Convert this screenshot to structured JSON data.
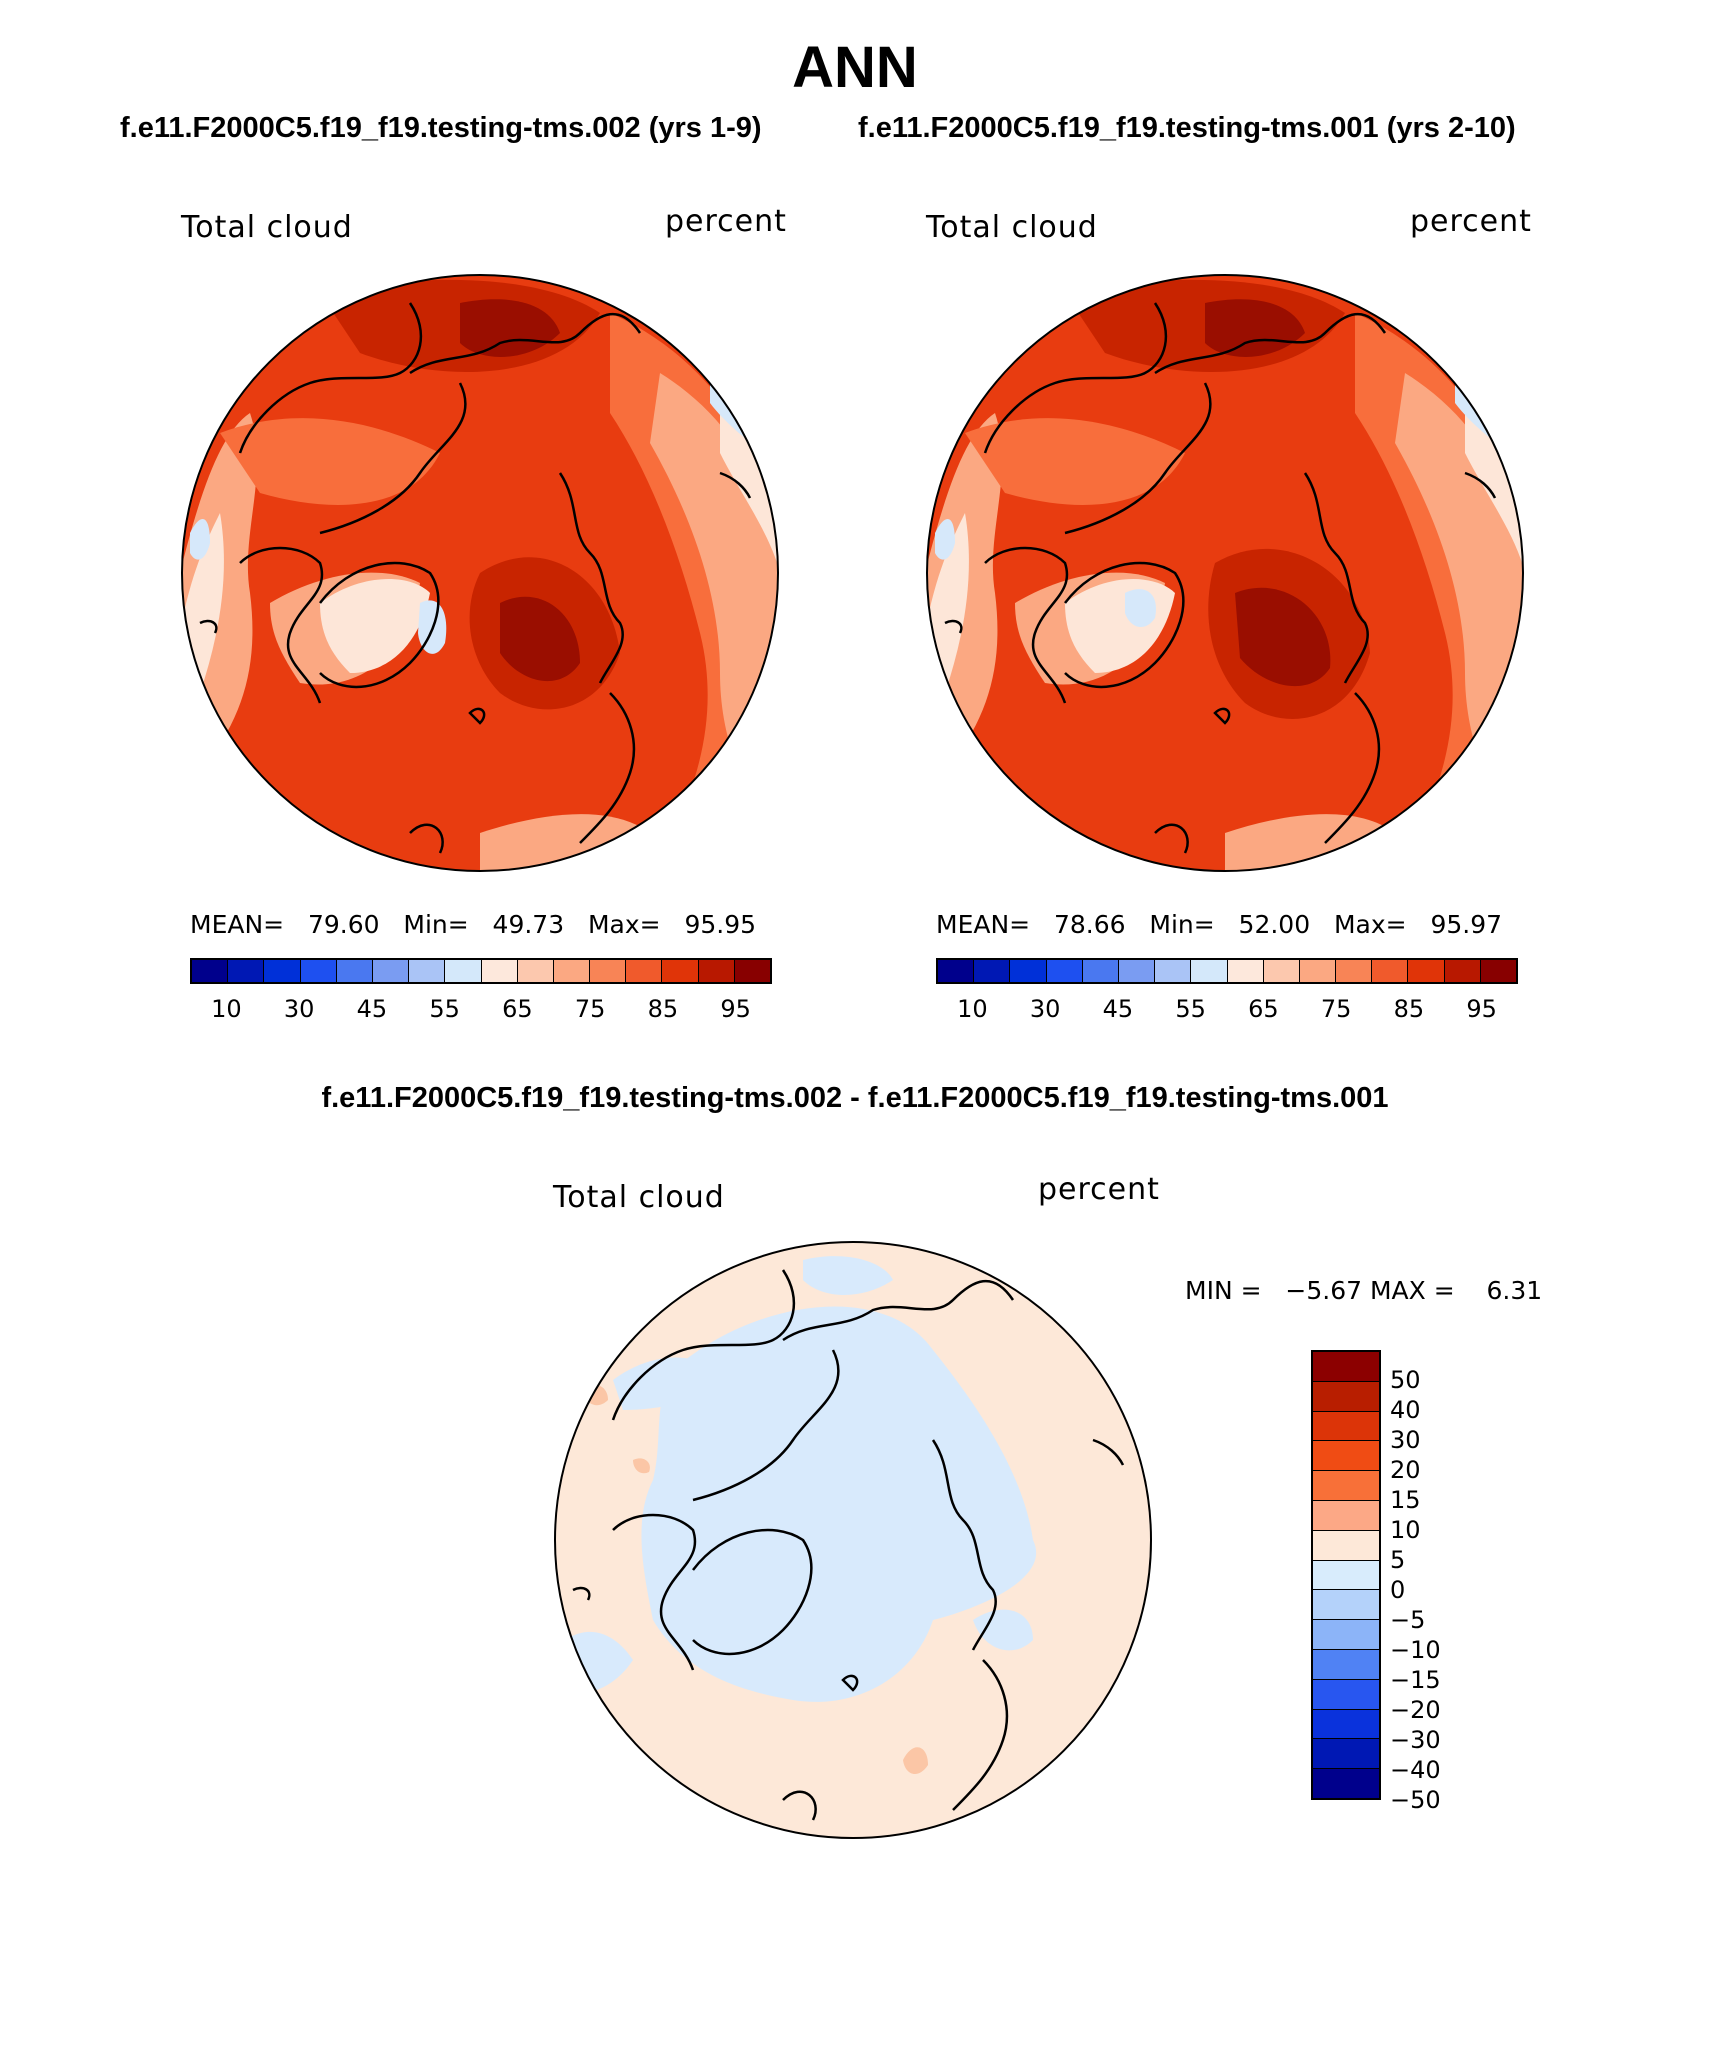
{
  "figure": {
    "title": "ANN",
    "subtitle_left": "f.e11.F2000C5.f19_f19.testing-tms.002 (yrs 1-9)",
    "subtitle_right": "f.e11.F2000C5.f19_f19.testing-tms.001 (yrs 2-10)",
    "diff_title": "f.e11.F2000C5.f19_f19.testing-tms.002 - f.e11.F2000C5.f19_f19.testing-tms.001"
  },
  "panels": [
    {
      "variable": "Total cloud",
      "units": "percent",
      "mean_label": "MEAN=",
      "mean": "79.60",
      "min_label": "Min=",
      "min": "49.73",
      "max_label": "Max=",
      "max": "95.95"
    },
    {
      "variable": "Total cloud",
      "units": "percent",
      "mean_label": "MEAN=",
      "mean": "78.66",
      "min_label": "Min=",
      "min": "52.00",
      "max_label": "Max=",
      "max": "95.97"
    },
    {
      "variable": "Total cloud",
      "units": "percent",
      "min_label": "MIN =",
      "min": "−5.67",
      "max_label": "MAX =",
      "max": "6.31"
    }
  ],
  "colorbars": {
    "absolute": {
      "colors": [
        "#00008c",
        "#0018b4",
        "#0030d8",
        "#1e50f0",
        "#4a78f0",
        "#7a9cf2",
        "#aac4f6",
        "#d4e8fa",
        "#fde8dc",
        "#fcc8ae",
        "#fba882",
        "#f88456",
        "#f05a2c",
        "#e03408",
        "#b81800",
        "#880000"
      ],
      "tick_labels": [
        "10",
        "30",
        "45",
        "55",
        "65",
        "75",
        "85",
        "95"
      ]
    },
    "difference": {
      "colors": [
        "#8c0000",
        "#b81e00",
        "#dc3408",
        "#f04c14",
        "#f87038",
        "#fca886",
        "#fde8d8",
        "#d8ecfc",
        "#b4d2fa",
        "#8cb4f8",
        "#5082f4",
        "#2856f0",
        "#0a32dc",
        "#0018b4",
        "#00008c"
      ],
      "tick_labels": [
        "50",
        "40",
        "30",
        "20",
        "15",
        "10",
        "5",
        "0",
        "−5",
        "−10",
        "−15",
        "−20",
        "−30",
        "−40",
        "−50"
      ]
    }
  },
  "map_colors": {
    "ocean_base": "#e83c10",
    "high": "#c82400",
    "very_high": "#9a0e00",
    "mid": "#f86e3c",
    "low": "#fba882",
    "lower": "#fcc6a8",
    "pale": "#fde6d8",
    "ice": "#d6e8fa",
    "diff_pos": "#fde8d8",
    "diff_neg": "#d8eafc",
    "diff_mid": "#fbc6a6"
  }
}
